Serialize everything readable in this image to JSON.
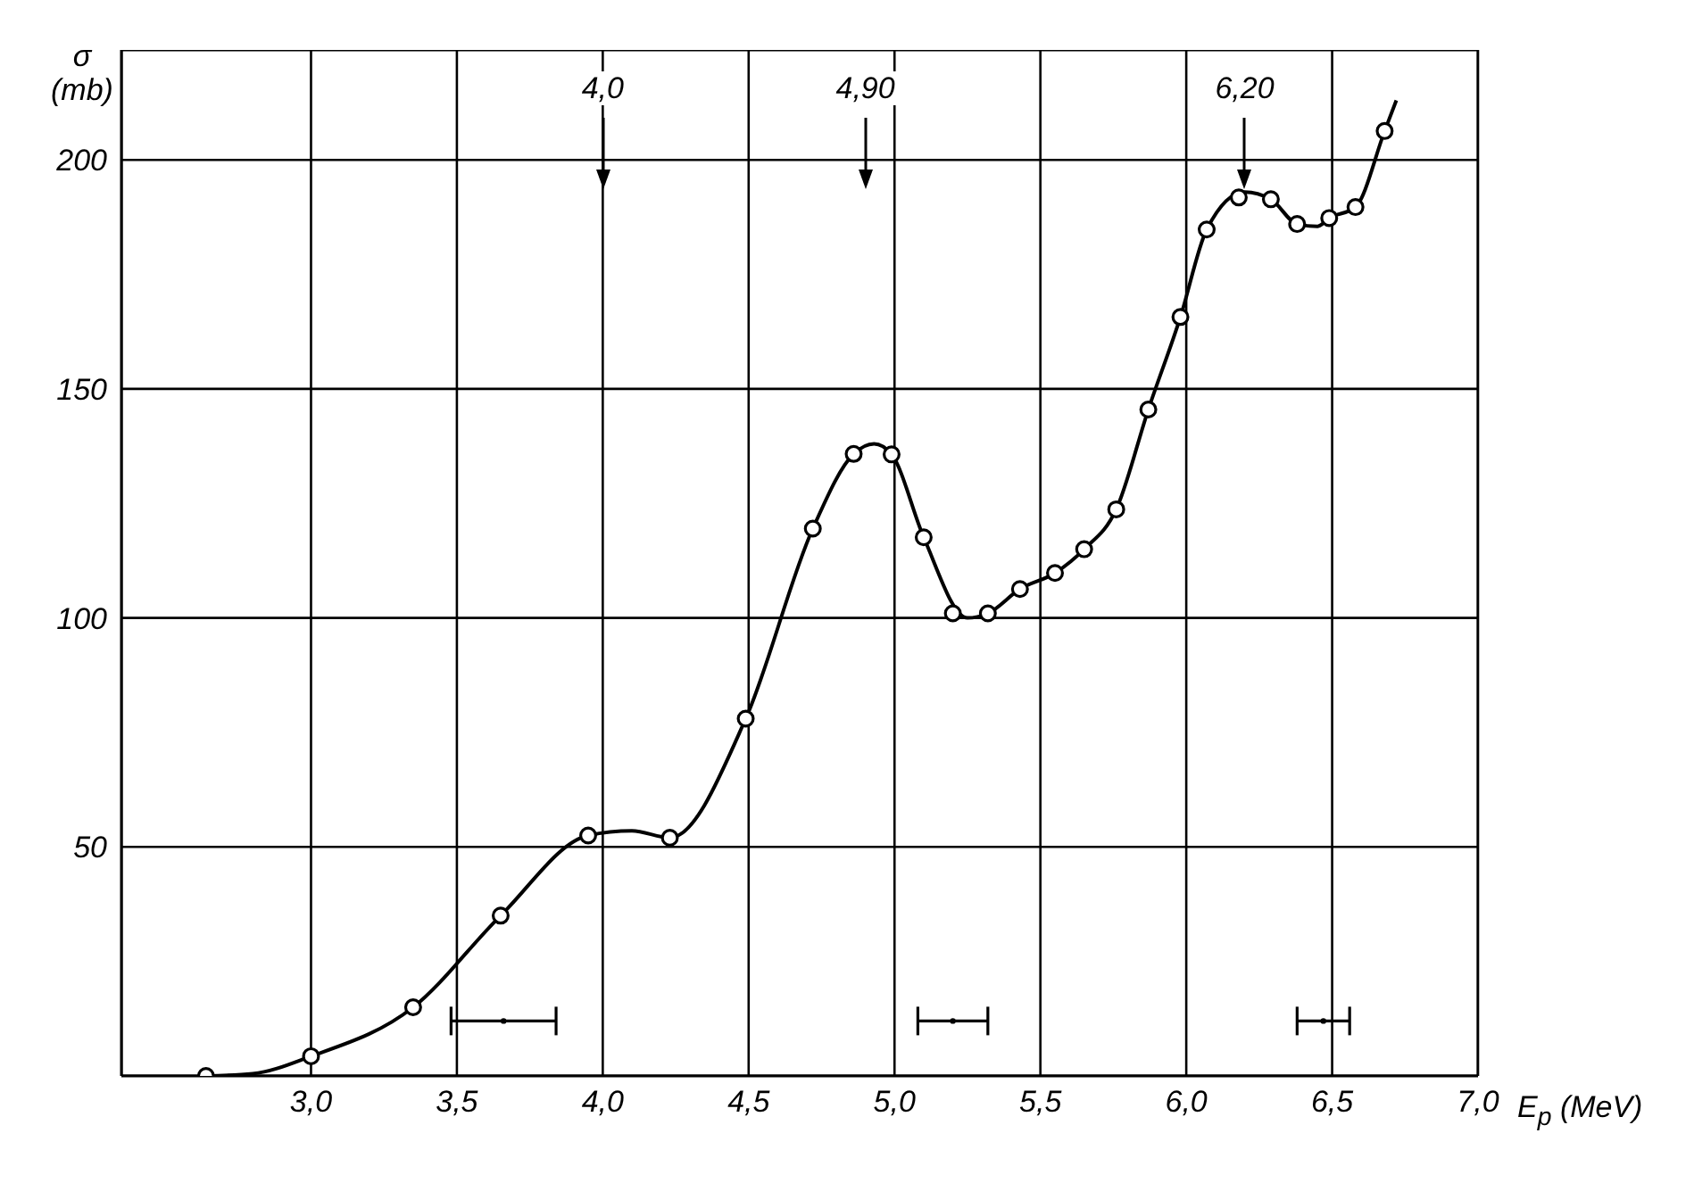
{
  "chart_data": {
    "type": "scatter",
    "xlabel": "E$_{p}$ (MeV)",
    "ylabel": "σ (mb)",
    "xlim": [
      2.35,
      7.0
    ],
    "ylim": [
      0,
      224
    ],
    "xticks": [
      {
        "value": 3,
        "label": "3,0"
      },
      {
        "value": 3.5,
        "label": "3,5"
      },
      {
        "value": 4,
        "label": "4,0"
      },
      {
        "value": 4.5,
        "label": "4,5"
      },
      {
        "value": 5,
        "label": "5,0"
      },
      {
        "value": 5.5,
        "label": "5,5"
      },
      {
        "value": 6,
        "label": "6,0"
      },
      {
        "value": 6.5,
        "label": "6,5"
      },
      {
        "value": 7,
        "label": "7,0"
      }
    ],
    "yticks": [
      50,
      100,
      150,
      200
    ],
    "grid": true,
    "series": [
      {
        "type": "line",
        "marker": "none",
        "line_style": "solid",
        "color": "#000000",
        "x": [
          2.64,
          2.8,
          3.0,
          3.35,
          3.65,
          3.95,
          4.1,
          4.23,
          4.49,
          4.72,
          4.86,
          4.93,
          4.99,
          5.1,
          5.25,
          5.32,
          5.43,
          5.55,
          5.65,
          5.76,
          5.87,
          5.98,
          6.07,
          6.2,
          6.29,
          6.38,
          6.45,
          6.49,
          6.58,
          6.68,
          6.72
        ],
        "values": [
          0,
          0.5,
          4.3,
          15,
          35,
          52.5,
          53.5,
          52,
          78,
          119.5,
          135.8,
          138,
          135.7,
          117.6,
          100,
          101,
          106.3,
          109.8,
          115,
          123.7,
          145.5,
          165.7,
          184.8,
          193,
          191.4,
          186,
          185.5,
          187.3,
          189.7,
          206.3,
          213
        ]
      },
      {
        "type": "scatter",
        "marker": "circle",
        "color": "#000000",
        "x": [
          2.64,
          3.0,
          3.35,
          3.65,
          3.95,
          4.23,
          4.49,
          4.72,
          4.86,
          4.99,
          5.1,
          5.2,
          5.32,
          5.43,
          5.55,
          5.65,
          5.76,
          5.87,
          5.98,
          6.07,
          6.18,
          6.29,
          6.38,
          6.49,
          6.58,
          6.68
        ],
        "values": [
          0,
          4.3,
          15,
          35,
          52.5,
          52,
          78,
          119.5,
          135.8,
          135.7,
          117.6,
          101,
          101,
          106.3,
          109.8,
          115,
          123.7,
          145.5,
          165.7,
          184.8,
          191.8,
          191.4,
          186,
          187.3,
          189.7,
          206.3
        ]
      },
      {
        "type": "scatter",
        "color": "#000000",
        "x": [
          3.66,
          5.2,
          6.47
        ],
        "values": [
          12,
          12,
          12
        ],
        "marker": "circle",
        "xerrors": [
          0.18,
          0.12,
          0.09
        ]
      }
    ],
    "annotations": [
      "4,0",
      "4,90",
      "6,20"
    ]
  }
}
